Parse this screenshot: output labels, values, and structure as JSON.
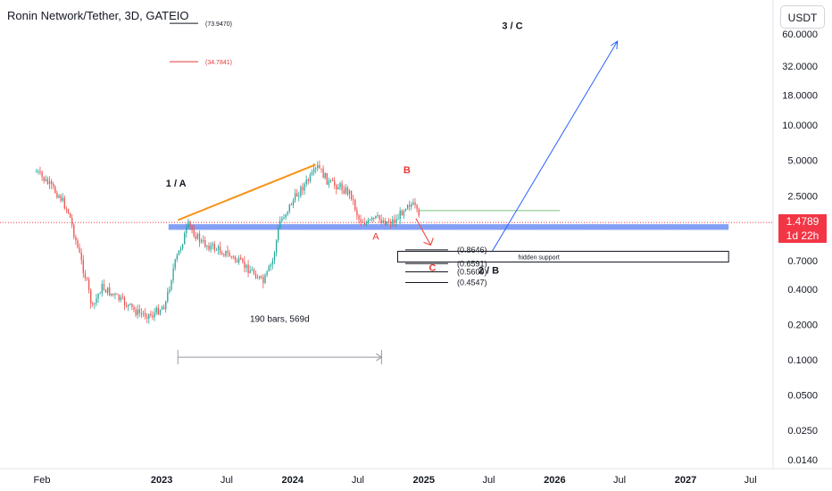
{
  "chart_data": {
    "type": "candlestick",
    "title": "Ronin Network/Tether, 3D, GATEIO",
    "currency": "USDT",
    "y_scale": "log",
    "y_ticks": [
      {
        "value": 60,
        "label": "60.0000"
      },
      {
        "value": 32,
        "label": "32.0000"
      },
      {
        "value": 18,
        "label": "18.0000"
      },
      {
        "value": 10,
        "label": "10.0000"
      },
      {
        "value": 5,
        "label": "5.0000"
      },
      {
        "value": 2.5,
        "label": "2.5000"
      },
      {
        "value": 0.7,
        "label": "0.7000"
      },
      {
        "value": 0.4,
        "label": "0.4000"
      },
      {
        "value": 0.2,
        "label": "0.2000"
      },
      {
        "value": 0.1,
        "label": "0.1000"
      },
      {
        "value": 0.05,
        "label": "0.0500"
      },
      {
        "value": 0.025,
        "label": "0.0250"
      },
      {
        "value": 0.014,
        "label": "0.0140"
      }
    ],
    "x_ticks": [
      {
        "date": "2022-02-01",
        "label": "Feb",
        "bold": false
      },
      {
        "date": "2023-01-01",
        "label": "2023",
        "bold": true
      },
      {
        "date": "2023-07-01",
        "label": "Jul",
        "bold": false
      },
      {
        "date": "2024-01-01",
        "label": "2024",
        "bold": true
      },
      {
        "date": "2024-07-01",
        "label": "Jul",
        "bold": false
      },
      {
        "date": "2025-01-01",
        "label": "2025",
        "bold": true
      },
      {
        "date": "2025-07-01",
        "label": "Jul",
        "bold": false
      },
      {
        "date": "2026-01-01",
        "label": "2026",
        "bold": true
      },
      {
        "date": "2026-07-01",
        "label": "Jul",
        "bold": false
      },
      {
        "date": "2027-01-01",
        "label": "2027",
        "bold": true
      },
      {
        "date": "2027-07-01",
        "label": "Jul",
        "bold": false
      }
    ],
    "last_price": {
      "value": 1.4789,
      "label": "1.4789",
      "countdown": "1d 22h"
    },
    "colors": {
      "up": "#26a69a",
      "down": "#ef5350",
      "orange": "#f7931a",
      "blue": "#2962ff",
      "support": "#6d8ff5",
      "green": "#a5d6a7",
      "price": "#f23645"
    },
    "price_path": [
      {
        "date": "2022-01-15",
        "price": 4.0
      },
      {
        "date": "2022-02-15",
        "price": 3.2
      },
      {
        "date": "2022-03-20",
        "price": 2.5
      },
      {
        "date": "2022-04-15",
        "price": 1.8
      },
      {
        "date": "2022-05-10",
        "price": 0.9
      },
      {
        "date": "2022-06-05",
        "price": 0.45
      },
      {
        "date": "2022-06-20",
        "price": 0.27
      },
      {
        "date": "2022-07-15",
        "price": 0.42
      },
      {
        "date": "2022-08-15",
        "price": 0.36
      },
      {
        "date": "2022-09-20",
        "price": 0.3
      },
      {
        "date": "2022-10-25",
        "price": 0.25
      },
      {
        "date": "2022-12-05",
        "price": 0.24
      },
      {
        "date": "2023-01-10",
        "price": 0.3
      },
      {
        "date": "2023-02-01",
        "price": 0.6
      },
      {
        "date": "2023-02-25",
        "price": 1.0
      },
      {
        "date": "2023-03-15",
        "price": 1.4
      },
      {
        "date": "2023-04-20",
        "price": 1.0
      },
      {
        "date": "2023-05-25",
        "price": 0.9
      },
      {
        "date": "2023-07-01",
        "price": 0.8
      },
      {
        "date": "2023-08-10",
        "price": 0.65
      },
      {
        "date": "2023-09-15",
        "price": 0.55
      },
      {
        "date": "2023-10-10",
        "price": 0.45
      },
      {
        "date": "2023-11-05",
        "price": 0.7
      },
      {
        "date": "2023-11-25",
        "price": 1.5
      },
      {
        "date": "2023-12-20",
        "price": 2.0
      },
      {
        "date": "2024-01-20",
        "price": 2.8
      },
      {
        "date": "2024-02-20",
        "price": 3.6
      },
      {
        "date": "2024-03-10",
        "price": 4.4
      },
      {
        "date": "2024-04-10",
        "price": 3.2
      },
      {
        "date": "2024-05-10",
        "price": 3.0
      },
      {
        "date": "2024-06-10",
        "price": 2.6
      },
      {
        "date": "2024-07-01",
        "price": 1.6
      },
      {
        "date": "2024-07-25",
        "price": 1.45
      },
      {
        "date": "2024-08-20",
        "price": 1.6
      },
      {
        "date": "2024-09-20",
        "price": 1.5
      },
      {
        "date": "2024-10-15",
        "price": 1.55
      },
      {
        "date": "2024-11-15",
        "price": 2.2
      },
      {
        "date": "2024-12-05",
        "price": 2.0
      },
      {
        "date": "2024-12-20",
        "price": 1.48
      }
    ],
    "annotations": [
      {
        "text": "1 / A",
        "date": "2023-02-10",
        "price": 3.0,
        "color": "#131722",
        "bold": true
      },
      {
        "text": "B",
        "date": "2024-11-15",
        "price": 3.9,
        "color": "#e53935",
        "bold": true
      },
      {
        "text": "A",
        "date": "2024-08-20",
        "price": 1.05,
        "color": "#e53935",
        "bold": false
      },
      {
        "text": "C",
        "date": "2025-01-25",
        "price": 0.57,
        "color": "#e53935",
        "bold": true
      },
      {
        "text": "2 / B",
        "date": "2025-07-01",
        "price": 0.54,
        "color": "#131722",
        "bold": true
      },
      {
        "text": "3 / C",
        "date": "2025-09-05",
        "price": 66,
        "color": "#131722",
        "bold": true
      }
    ],
    "fib_levels": [
      {
        "label": "(73.9470)",
        "value": 73.947,
        "color": "#131722"
      },
      {
        "label": "(34.7841)",
        "value": 34.7841,
        "color": "#e53935"
      },
      {
        "label": "(0.8646)",
        "value": 0.8646,
        "color": "#131722"
      },
      {
        "label": "(0.6591)",
        "value": 0.6591,
        "color": "#131722"
      },
      {
        "label": "(0.5609)",
        "value": 0.5609,
        "color": "#131722"
      },
      {
        "label": "(0.4547)",
        "value": 0.4547,
        "color": "#131722"
      }
    ],
    "zones": [
      {
        "label": "hidden support",
        "from_date": "2024-10-20",
        "to_date": "2027-05-01",
        "low": 0.68,
        "high": 0.84
      }
    ],
    "support_band": {
      "from_date": "2023-01-20",
      "to_date": "2027-05-01",
      "low": 1.28,
      "high": 1.43
    },
    "green_line": {
      "from_date": "2024-12-20",
      "to_date": "2026-01-15",
      "value": 1.87
    },
    "trend_line": {
      "from": {
        "date": "2023-02-15",
        "price": 1.55
      },
      "to": {
        "date": "2024-03-05",
        "price": 4.6
      }
    },
    "projection": {
      "from": {
        "date": "2025-07-01",
        "price": 0.75
      },
      "to": {
        "date": "2026-06-25",
        "price": 52
      }
    },
    "red_path": {
      "from": {
        "date": "2024-12-10",
        "price": 1.6
      },
      "to": {
        "date": "2025-01-20",
        "price": 0.95
      }
    },
    "measure": {
      "label": "190 bars, 569d",
      "from_date": "2023-02-15",
      "to_date": "2024-09-05",
      "price": 0.105,
      "label_price": 0.21
    }
  }
}
